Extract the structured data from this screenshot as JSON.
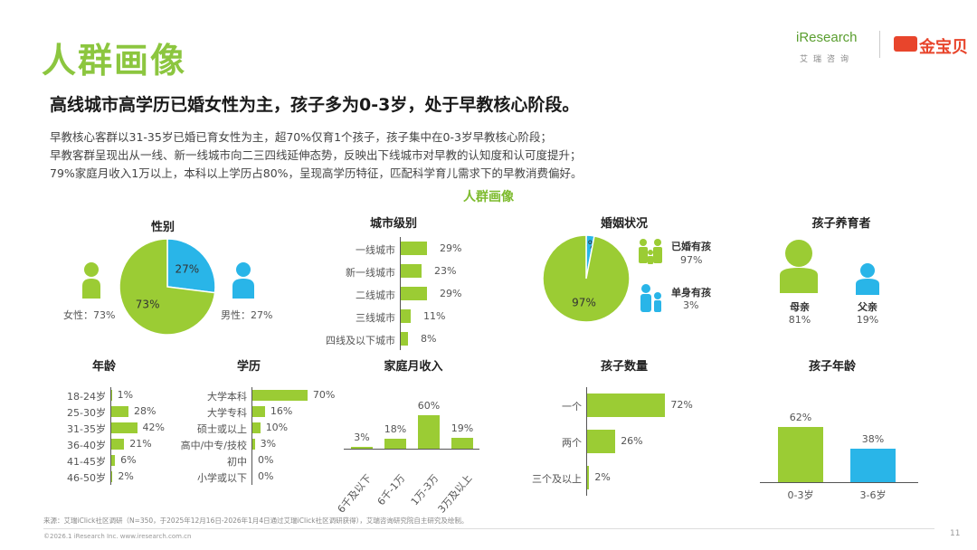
{
  "title": "人群画像",
  "logos": {
    "iresearch": "iResearch",
    "iresearch_sub": "艾瑞咨询",
    "jinbaobei": "金宝贝"
  },
  "headline": "高线城市高学历已婚女性为主，孩子多为0-3岁，处于早教核心阶段。",
  "summary": [
    "早教核心客群以31-35岁已婚已育女性为主，超70%仅育1个孩子，孩子集中在0-3岁早教核心阶段；",
    "早教客群呈现出从一线、新一线城市向二三四线延伸态势，反映出下线城市对早教的认知度和认可度提升；",
    "79%家庭月收入1万以上，本科以上学历占80%，呈现高学历特征，匹配科学育儿需求下的早教消费偏好。"
  ],
  "section_title": "人群画像",
  "colors": {
    "green": "#9bcc34",
    "blue": "#29b5e8",
    "title_green": "#8cc63f"
  },
  "chart_data": [
    {
      "id": "gender",
      "type": "pie",
      "title": "性别",
      "slices": [
        {
          "label": "女性",
          "value": 73,
          "text": "73%",
          "legend": "女性：73%",
          "color": "#9bcc34"
        },
        {
          "label": "男性",
          "value": 27,
          "text": "27%",
          "legend": "男性：27%",
          "color": "#29b5e8"
        }
      ]
    },
    {
      "id": "city",
      "type": "bar",
      "orientation": "horizontal",
      "title": "城市级别",
      "categories": [
        "一线城市",
        "新一线城市",
        "二线城市",
        "三线城市",
        "四线及以下城市"
      ],
      "values": [
        29,
        23,
        29,
        11,
        8
      ],
      "labels": [
        "29%",
        "23%",
        "29%",
        "11%",
        "8%"
      ]
    },
    {
      "id": "marital",
      "type": "pie",
      "title": "婚姻状况",
      "slices": [
        {
          "label": "已婚有孩",
          "value": 97,
          "text": "97%",
          "legend_value": "97%",
          "color": "#9bcc34"
        },
        {
          "label": "单身有孩",
          "value": 3,
          "text": "3%",
          "legend_value": "3%",
          "color": "#29b5e8"
        }
      ]
    },
    {
      "id": "caregiver",
      "type": "table",
      "title": "孩子养育者",
      "items": [
        {
          "label": "母亲",
          "value": "81%"
        },
        {
          "label": "父亲",
          "value": "19%"
        }
      ]
    },
    {
      "id": "age",
      "type": "bar",
      "orientation": "horizontal",
      "title": "年龄",
      "categories": [
        "18-24岁",
        "25-30岁",
        "31-35岁",
        "36-40岁",
        "41-45岁",
        "46-50岁"
      ],
      "values": [
        1,
        28,
        42,
        21,
        6,
        2
      ],
      "labels": [
        "1%",
        "28%",
        "42%",
        "21%",
        "6%",
        "2%"
      ]
    },
    {
      "id": "education",
      "type": "bar",
      "orientation": "horizontal",
      "title": "学历",
      "categories": [
        "大学本科",
        "大学专科",
        "硕士或以上",
        "高中/中专/技校",
        "初中",
        "小学或以下"
      ],
      "values": [
        70,
        16,
        10,
        3,
        0,
        0
      ],
      "labels": [
        "70%",
        "16%",
        "10%",
        "3%",
        "0%",
        "0%"
      ]
    },
    {
      "id": "income",
      "type": "bar",
      "orientation": "vertical",
      "title": "家庭月收入",
      "categories": [
        "6千及以下",
        "6千-1万",
        "1万-3万",
        "3万及以上"
      ],
      "values": [
        3,
        18,
        60,
        19
      ],
      "labels": [
        "3%",
        "18%",
        "60%",
        "19%"
      ]
    },
    {
      "id": "children",
      "type": "bar",
      "orientation": "horizontal",
      "title": "孩子数量",
      "categories": [
        "一个",
        "两个",
        "三个及以上"
      ],
      "values": [
        72,
        26,
        2
      ],
      "labels": [
        "72%",
        "26%",
        "2%"
      ]
    },
    {
      "id": "child_age",
      "type": "bar",
      "orientation": "vertical",
      "title": "孩子年龄",
      "categories": [
        "0-3岁",
        "3-6岁"
      ],
      "values": [
        62,
        38
      ],
      "labels": [
        "62%",
        "38%"
      ],
      "colors": [
        "#9bcc34",
        "#29b5e8"
      ]
    }
  ],
  "footer": {
    "source": "来源：艾瑞iClick社区调研（N=350，于2025年12月16日-2026年1月4日通过艾瑞iClick社区调研获得），艾瑞咨询研究院自主研究及绘制。",
    "copyright": "©2026.1 iResearch Inc.                    www.iresearch.com.cn",
    "page": "11"
  }
}
